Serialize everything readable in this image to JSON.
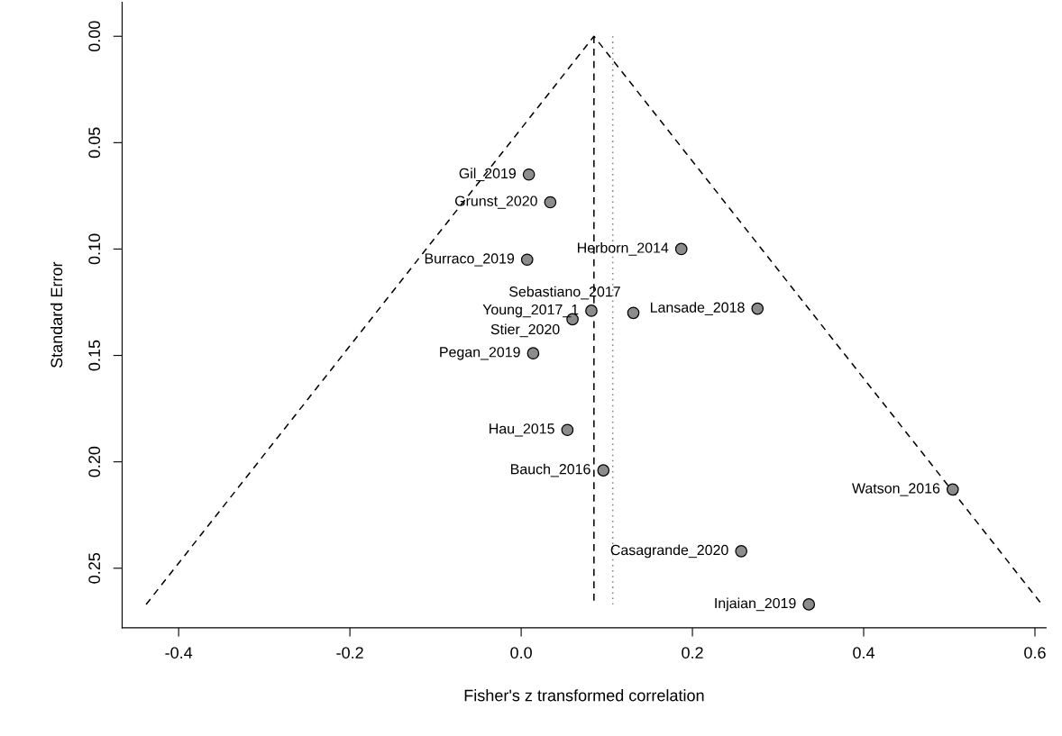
{
  "chart_data": {
    "type": "scatter",
    "xlabel": "Fisher's z transformed correlation",
    "ylabel": "Standard Error",
    "xlim": [
      -0.466,
      0.613
    ],
    "ylim": [
      0.278,
      -0.016
    ],
    "xticks": [
      -0.4,
      -0.2,
      {
        "value": 0,
        "label": "0.0"
      },
      0.2,
      0.4,
      0.6
    ],
    "yticks": [
      {
        "value": 0,
        "label": "0.00"
      },
      {
        "value": 0.05,
        "label": "0.05"
      },
      {
        "value": 0.1,
        "label": "0.10"
      },
      {
        "value": 0.15,
        "label": "0.15"
      },
      {
        "value": 0.2,
        "label": "0.20"
      },
      {
        "value": 0.25,
        "label": "0.25"
      }
    ],
    "grid": false,
    "legend": false,
    "series": [
      {
        "type": "line",
        "color": "#000000",
        "line_style": "dashed",
        "marker": "none",
        "x": [
          -0.438,
          0.085,
          0.608
        ],
        "values": [
          0.267,
          0,
          0.267
        ]
      },
      {
        "type": "line",
        "color": "#000000",
        "line_style": "dashed",
        "marker": "none",
        "x": [
          0.085,
          0.085
        ],
        "values": [
          0,
          0.267
        ]
      },
      {
        "type": "line",
        "color": "#808080",
        "line_style": "dotted",
        "marker": "none",
        "x": [
          0.107,
          0.107
        ],
        "values": [
          0,
          0.267
        ]
      },
      {
        "color": "#8c8c8c",
        "marker": "circle",
        "x": [
          0.009,
          0.034,
          0.187,
          0.007,
          0.082,
          0.06,
          0.131,
          0.276,
          0.014,
          0.054,
          0.096,
          0.504,
          0.257,
          0.336
        ],
        "values": [
          0.065,
          0.078,
          0.1,
          0.105,
          0.129,
          0.133,
          0.13,
          0.128,
          0.149,
          0.185,
          0.204,
          0.213,
          0.242,
          0.267
        ]
      }
    ],
    "annotations": [
      {
        "text": "Gil_2019",
        "x": 0.009,
        "y": 0.065
      },
      {
        "text": "Grunst_2020",
        "x": 0.034,
        "y": 0.078
      },
      {
        "text": "Herborn_2014",
        "x": 0.187,
        "y": 0.1
      },
      {
        "text": "Burraco_2019",
        "x": 0.007,
        "y": 0.105
      },
      {
        "text": "Young_2017_1",
        "x": 0.082,
        "y": 0.129
      },
      {
        "text": "Stier_2020",
        "x": 0.06,
        "y": 0.133
      },
      {
        "text": "Sebastiano_2017",
        "x": 0.131,
        "y": 0.13
      },
      {
        "text": "Lansade_2018",
        "x": 0.276,
        "y": 0.128
      },
      {
        "text": "Pegan_2019",
        "x": 0.014,
        "y": 0.149
      },
      {
        "text": "Hau_2015",
        "x": 0.054,
        "y": 0.185
      },
      {
        "text": "Bauch_2016",
        "x": 0.096,
        "y": 0.204
      },
      {
        "text": "Watson_2016",
        "x": 0.504,
        "y": 0.213
      },
      {
        "text": "Casagrande_2020",
        "x": 0.257,
        "y": 0.242
      },
      {
        "text": "Injaian_2019",
        "x": 0.336,
        "y": 0.267
      }
    ]
  }
}
